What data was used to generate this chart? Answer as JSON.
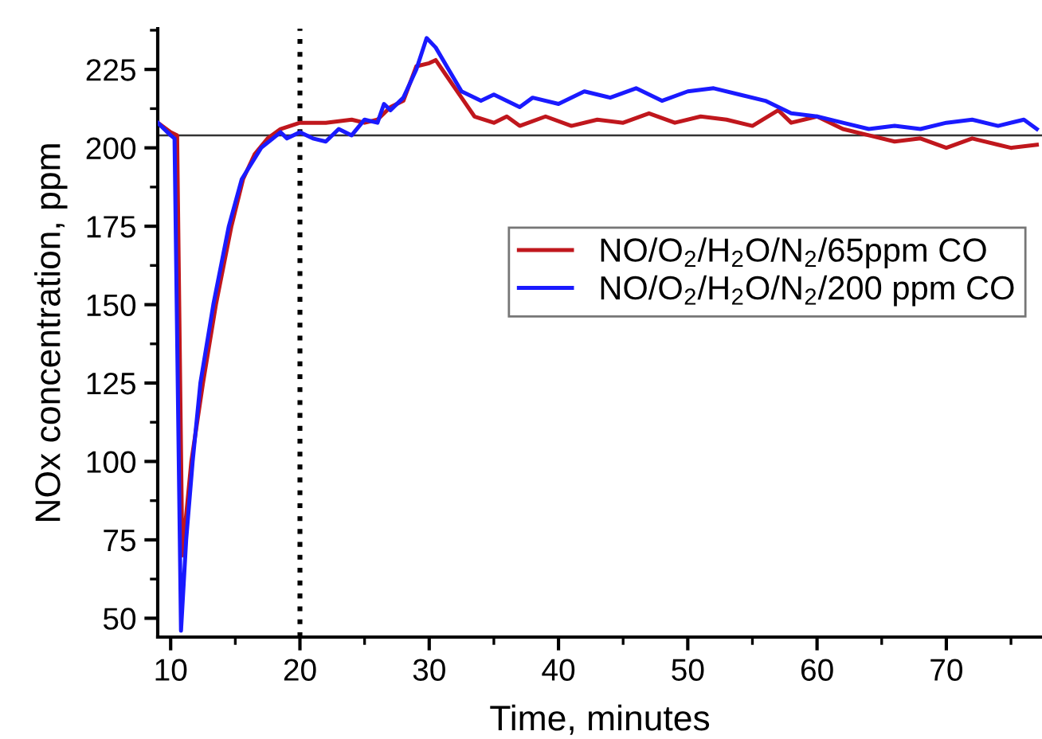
{
  "chart_data": {
    "type": "line",
    "xlabel": "Time, minutes",
    "ylabel": "NOx concentration, ppm",
    "xlim": [
      9,
      77.4
    ],
    "ylim": [
      44,
      238
    ],
    "xticks": [
      10,
      {
        "value": 15,
        "label": null
      },
      20,
      {
        "value": 25,
        "label": null
      },
      30,
      {
        "value": 35,
        "label": null
      },
      40,
      {
        "value": 45,
        "label": null
      },
      50,
      {
        "value": 55,
        "label": null
      },
      60,
      {
        "value": 65,
        "label": null
      },
      70,
      {
        "value": 75,
        "label": null
      }
    ],
    "yticks": [
      50,
      {
        "value": 62.5,
        "label": null
      },
      75,
      {
        "value": 87.5,
        "label": null
      },
      100,
      {
        "value": 112.5,
        "label": null
      },
      125,
      {
        "value": 137.5,
        "label": null
      },
      150,
      {
        "value": 162.5,
        "label": null
      },
      175,
      {
        "value": 187.5,
        "label": null
      },
      200,
      {
        "value": 212.5,
        "label": null
      },
      225,
      {
        "value": 237.5,
        "label": null
      }
    ],
    "grid": false,
    "legend": "right",
    "marker": "none",
    "line_style": "solid",
    "ref_lines": [
      {
        "axis": "y",
        "value": 204,
        "label": null,
        "color": "#333333",
        "line_style": "solid"
      },
      {
        "axis": "x",
        "value": 20,
        "label": null,
        "color": "#000000",
        "line_style": "dotted"
      }
    ],
    "series": [
      {
        "name": "NO/O$_{2}$/H$_{2}$O/N$_{2}$/65ppm CO",
        "color": "#c0171d",
        "x": [
          9,
          10,
          10.5,
          10.9,
          11.6,
          12.5,
          13.5,
          14.7,
          15.6,
          16.5,
          17.5,
          18.5,
          20,
          22,
          24,
          25,
          26,
          27,
          28,
          29,
          30,
          30.5,
          31.5,
          32.5,
          33.5,
          35,
          36,
          37,
          39,
          41,
          43,
          45,
          47,
          49,
          51,
          53,
          55,
          57,
          58,
          60,
          62,
          64,
          66,
          68,
          70,
          72,
          74,
          75,
          77
        ],
        "values": [
          208,
          205,
          204,
          70,
          100,
          125,
          150,
          175,
          190,
          198,
          203,
          206,
          208,
          208,
          209,
          208,
          209,
          213,
          215,
          226,
          227,
          228,
          222,
          216,
          210,
          208,
          210,
          207,
          210,
          207,
          209,
          208,
          211,
          208,
          210,
          209,
          207,
          212,
          208,
          210,
          206,
          204,
          202,
          203,
          200,
          203,
          201,
          200,
          201
        ]
      },
      {
        "name": "NO/O$_{2}$/H$_{2}$O/N$_{2}$/200 ppm CO",
        "color": "#1a1aff",
        "x": [
          9,
          10,
          10.3,
          10.8,
          11.2,
          11.7,
          12.3,
          13.3,
          14.5,
          15.5,
          17,
          18.5,
          19,
          20,
          21,
          22,
          23,
          24,
          25,
          26,
          26.5,
          27,
          28,
          29,
          29.8,
          30.5,
          31.5,
          32.5,
          34,
          35,
          37,
          38,
          40,
          42,
          44,
          46,
          48,
          50,
          52,
          54,
          56,
          58,
          60,
          62,
          64,
          66,
          68,
          70,
          72,
          74,
          76,
          77
        ],
        "values": [
          208,
          204,
          203,
          46,
          75,
          100,
          125,
          150,
          175,
          190,
          200,
          205,
          203,
          205,
          203,
          202,
          206,
          204,
          209,
          208,
          214,
          212,
          216,
          225,
          235,
          232,
          225,
          218,
          215,
          217,
          213,
          216,
          214,
          218,
          216,
          219,
          215,
          218,
          219,
          217,
          215,
          211,
          210,
          208,
          206,
          207,
          206,
          208,
          209,
          207,
          209,
          206
        ]
      }
    ]
  }
}
